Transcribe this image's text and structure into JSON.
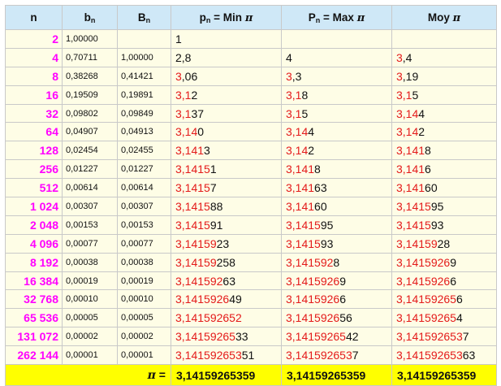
{
  "header": {
    "n": "n",
    "b": "b",
    "b_sub": "n",
    "B": "B",
    "B_sub": "n",
    "p": "p",
    "p_sub": "n",
    "p_text": " = Min ",
    "pi": "π",
    "P": "P",
    "P_sub": "n",
    "P_text": " = Max ",
    "moy": "Moy "
  },
  "rows": [
    {
      "n": "2",
      "b": "1,00000",
      "B": "",
      "min": [
        "",
        "1"
      ],
      "max": [
        "",
        ""
      ],
      "moy": [
        "",
        ""
      ]
    },
    {
      "n": "4",
      "b": "0,70711",
      "B": "1,00000",
      "min": [
        "",
        "2,8"
      ],
      "max": [
        "",
        "4"
      ],
      "moy": [
        "3",
        ",4"
      ]
    },
    {
      "n": "8",
      "b": "0,38268",
      "B": "0,41421",
      "min": [
        "3",
        ",06"
      ],
      "max": [
        "3",
        ",3"
      ],
      "moy": [
        "3",
        ",19"
      ]
    },
    {
      "n": "16",
      "b": "0,19509",
      "B": "0,19891",
      "min": [
        "3,1",
        "2"
      ],
      "max": [
        "3,1",
        "8"
      ],
      "moy": [
        "3,1",
        "5"
      ]
    },
    {
      "n": "32",
      "b": "0,09802",
      "B": "0,09849",
      "min": [
        "3,1",
        "37"
      ],
      "max": [
        "3,1",
        "5"
      ],
      "moy": [
        "3,14",
        "4"
      ]
    },
    {
      "n": "64",
      "b": "0,04907",
      "B": "0,04913",
      "min": [
        "3,14",
        "0"
      ],
      "max": [
        "3,14",
        "4"
      ],
      "moy": [
        "3,14",
        "2"
      ]
    },
    {
      "n": "128",
      "b": "0,02454",
      "B": "0,02455",
      "min": [
        "3,141",
        "3"
      ],
      "max": [
        "3,14",
        "2"
      ],
      "moy": [
        "3,141",
        "8"
      ]
    },
    {
      "n": "256",
      "b": "0,01227",
      "B": "0,01227",
      "min": [
        "3,1415",
        "1"
      ],
      "max": [
        "3,141",
        "8"
      ],
      "moy": [
        "3,141",
        "6"
      ]
    },
    {
      "n": "512",
      "b": "0,00614",
      "B": "0,00614",
      "min": [
        "3,1415",
        "7"
      ],
      "max": [
        "3,141",
        "63"
      ],
      "moy": [
        "3,141",
        "60"
      ]
    },
    {
      "n": "1 024",
      "b": "0,00307",
      "B": "0,00307",
      "min": [
        "3,1415",
        "88"
      ],
      "max": [
        "3,141",
        "60"
      ],
      "moy": [
        "3,1415",
        "95"
      ]
    },
    {
      "n": "2 048",
      "b": "0,00153",
      "B": "0,00153",
      "min": [
        "3,1415",
        "91"
      ],
      "max": [
        "3,1415",
        "95"
      ],
      "moy": [
        "3,1415",
        "93"
      ]
    },
    {
      "n": "4 096",
      "b": "0,00077",
      "B": "0,00077",
      "min": [
        "3,14159",
        "23"
      ],
      "max": [
        "3,1415",
        "93"
      ],
      "moy": [
        "3,14159",
        "28"
      ]
    },
    {
      "n": "8 192",
      "b": "0,00038",
      "B": "0,00038",
      "min": [
        "3,14159",
        "258"
      ],
      "max": [
        "3,141592",
        "8"
      ],
      "moy": [
        "3,1415926",
        "9"
      ]
    },
    {
      "n": "16 384",
      "b": "0,00019",
      "B": "0,00019",
      "min": [
        "3,141592",
        "63"
      ],
      "max": [
        "3,1415926",
        "9"
      ],
      "moy": [
        "3,1415926",
        "6"
      ]
    },
    {
      "n": "32 768",
      "b": "0,00010",
      "B": "0,00010",
      "min": [
        "3,1415926",
        "49"
      ],
      "max": [
        "3,1415926",
        "6"
      ],
      "moy": [
        "3,14159265",
        "6"
      ]
    },
    {
      "n": "65 536",
      "b": "0,00005",
      "B": "0,00005",
      "min": [
        "3,141592652",
        ""
      ],
      "max": [
        "3,1415926",
        "56"
      ],
      "moy": [
        "3,14159265",
        "4"
      ]
    },
    {
      "n": "131 072",
      "b": "0,00002",
      "B": "0,00002",
      "min": [
        "3,14159265",
        "33"
      ],
      "max": [
        "3,14159265",
        "42"
      ],
      "moy": [
        "3,141592653",
        "7"
      ]
    },
    {
      "n": "262 144",
      "b": "0,00001",
      "B": "0,00001",
      "min": [
        "3,141592653",
        "51"
      ],
      "max": [
        "3,141592653",
        "7"
      ],
      "moy": [
        "3,141592653",
        "63"
      ]
    }
  ],
  "footer": {
    "label_pi": "π",
    "label_eq": " =",
    "min": "3,14159265359",
    "max": "3,14159265359",
    "moy": "3,14159265359"
  },
  "colors": {
    "n_text": "#ff00ff",
    "correct_digits": "#e41a1a",
    "header_bg": "#cfe8f7",
    "cell_bg": "#fefde6",
    "footer_bg": "#ffff00"
  }
}
